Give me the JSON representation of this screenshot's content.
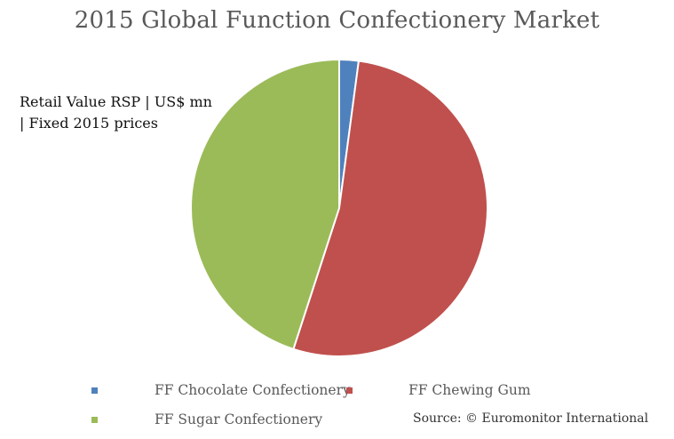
{
  "chart_data": {
    "type": "pie",
    "title": "2015 Global Function Confectionery Market",
    "subtitle": "Retail Value RSP | US$ mn | Fixed 2015 prices",
    "categories": [
      "FF Chocolate Confectionery",
      "FF Chewing Gum",
      "FF Sugar Confectionery"
    ],
    "values": [
      2.1,
      52.9,
      45.0
    ],
    "value_unit": "approx. % share (estimated from slice angles)",
    "colors": [
      "#4f81bd",
      "#c0504d",
      "#9bbb59"
    ],
    "start_angle_deg": 0,
    "direction": "clockwise",
    "legend_position": "bottom",
    "source": "Source: © Euromonitor International"
  },
  "header": {
    "title": "2015 Global Function Confectionery Market",
    "subtitle_line1": "Retail Value RSP | US$ mn",
    "subtitle_line2": "| Fixed 2015 prices"
  },
  "legend": {
    "items": [
      {
        "label": "FF Chocolate Confectionery",
        "color": "#4f81bd"
      },
      {
        "label": "FF Chewing Gum",
        "color": "#c0504d"
      },
      {
        "label": "FF Sugar Confectionery",
        "color": "#9bbb59"
      }
    ]
  },
  "footer": {
    "source": "Source: © Euromonitor International"
  }
}
